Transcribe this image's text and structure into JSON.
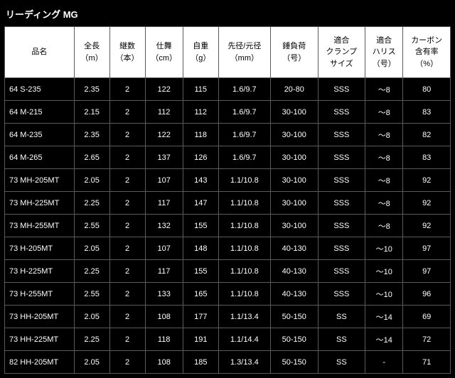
{
  "title": "リーディング MG",
  "columns": [
    {
      "l1": "品名",
      "l2": "",
      "l3": ""
    },
    {
      "l1": "全長",
      "l2": "（m）",
      "l3": ""
    },
    {
      "l1": "継数",
      "l2": "（本）",
      "l3": ""
    },
    {
      "l1": "仕舞",
      "l2": "（cm）",
      "l3": ""
    },
    {
      "l1": "自重",
      "l2": "（g）",
      "l3": ""
    },
    {
      "l1": "先径/元径",
      "l2": "（mm）",
      "l3": ""
    },
    {
      "l1": "錘負荷",
      "l2": "（号）",
      "l3": ""
    },
    {
      "l1": "適合",
      "l2": "クランプ",
      "l3": "サイズ"
    },
    {
      "l1": "適合",
      "l2": "ハリス",
      "l3": "（号）"
    },
    {
      "l1": "カーボン",
      "l2": "含有率",
      "l3": "（%）"
    }
  ],
  "rows": [
    [
      "64 S-235",
      "2.35",
      "2",
      "122",
      "115",
      "1.6/9.7",
      "20-80",
      "SSS",
      "～8",
      "80"
    ],
    [
      "64 M-215",
      "2.15",
      "2",
      "112",
      "112",
      "1.6/9.7",
      "30-100",
      "SSS",
      "～8",
      "83"
    ],
    [
      "64 M-235",
      "2.35",
      "2",
      "122",
      "118",
      "1.6/9.7",
      "30-100",
      "SSS",
      "～8",
      "82"
    ],
    [
      "64 M-265",
      "2.65",
      "2",
      "137",
      "126",
      "1.6/9.7",
      "30-100",
      "SSS",
      "～8",
      "83"
    ],
    [
      "73 MH-205MT",
      "2.05",
      "2",
      "107",
      "143",
      "1.1/10.8",
      "30-100",
      "SSS",
      "～8",
      "92"
    ],
    [
      "73 MH-225MT",
      "2.25",
      "2",
      "117",
      "147",
      "1.1/10.8",
      "30-100",
      "SSS",
      "～8",
      "92"
    ],
    [
      "73 MH-255MT",
      "2.55",
      "2",
      "132",
      "155",
      "1.1/10.8",
      "30-100",
      "SSS",
      "～8",
      "92"
    ],
    [
      "73 H-205MT",
      "2.05",
      "2",
      "107",
      "148",
      "1.1/10.8",
      "40-130",
      "SSS",
      "～10",
      "97"
    ],
    [
      "73 H-225MT",
      "2.25",
      "2",
      "117",
      "155",
      "1.1/10.8",
      "40-130",
      "SSS",
      "～10",
      "97"
    ],
    [
      "73 H-255MT",
      "2.55",
      "2",
      "133",
      "165",
      "1.1/10.8",
      "40-130",
      "SSS",
      "～10",
      "96"
    ],
    [
      "73 HH-205MT",
      "2.05",
      "2",
      "108",
      "177",
      "1.1/13.4",
      "50-150",
      "SS",
      "～14",
      "69"
    ],
    [
      "73 HH-225MT",
      "2.25",
      "2",
      "118",
      "191",
      "1.1/14.4",
      "50-150",
      "SS",
      "～14",
      "72"
    ],
    [
      "82 HH-205MT",
      "2.05",
      "2",
      "108",
      "185",
      "1.3/13.4",
      "50-150",
      "SS",
      "-",
      "71"
    ]
  ],
  "col_classes": [
    "col-name",
    "col-len",
    "col-sec",
    "col-cls",
    "col-wt",
    "col-dia",
    "col-load",
    "col-clamp",
    "col-line",
    "col-carb"
  ]
}
